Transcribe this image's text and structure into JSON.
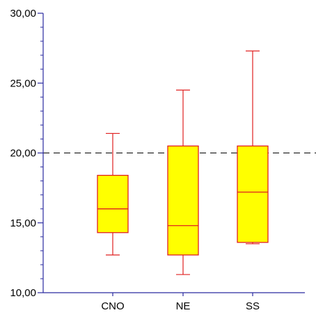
{
  "chart_data": {
    "type": "box",
    "title": "",
    "xlabel": "",
    "ylabel": "",
    "ylim": [
      10,
      30
    ],
    "y_ticks": [
      10,
      15,
      20,
      25,
      30
    ],
    "y_tick_labels": [
      "10,00",
      "15,00",
      "20,00",
      "25,00",
      "30,00"
    ],
    "y_minor_step": 1,
    "categories": [
      "CNO",
      "NE",
      "SS"
    ],
    "boxes": [
      {
        "category": "CNO",
        "min": 12.7,
        "q1": 14.3,
        "median": 16.0,
        "q3": 18.4,
        "max": 21.4
      },
      {
        "category": "NE",
        "min": 11.3,
        "q1": 12.7,
        "median": 14.8,
        "q3": 20.5,
        "max": 24.5
      },
      {
        "category": "SS",
        "min": 13.5,
        "q1": 13.6,
        "median": 17.2,
        "q3": 20.5,
        "max": 27.3
      }
    ],
    "reference_line": {
      "y": 20,
      "style": "dashed"
    },
    "grid": false,
    "legend": "none",
    "colors": {
      "box_fill": "#ffff00",
      "box_stroke": "#e02020",
      "axis": "#2a2aa0",
      "reference": "#000000"
    }
  }
}
